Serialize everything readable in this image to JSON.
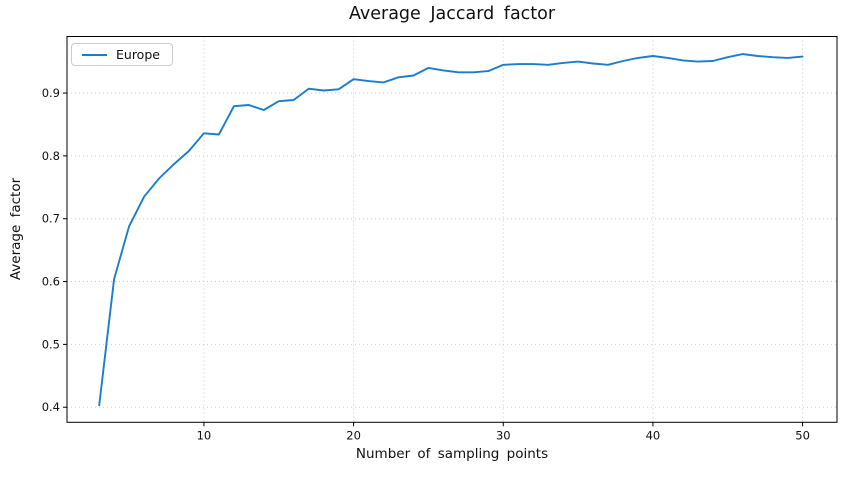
{
  "figure": {
    "background": "#ffffff"
  },
  "styles": {
    "line_color": "#1b7dcb",
    "grid_color": "#cccccc",
    "spine_color": "#000000",
    "text_color": "#111111",
    "legend_border_color": "#cccccc"
  },
  "legend": {
    "entries": [
      {
        "label": "Europe",
        "color": "#1b7dcb"
      }
    ],
    "position": "upper left"
  },
  "chart_data": {
    "type": "line",
    "title": "Average Jaccard factor",
    "xlabel": "Number of sampling points",
    "ylabel": "Average factor",
    "grid": true,
    "grid_style": "dotted",
    "legend_position": "upper left",
    "xlim": [
      0.85,
      52.3
    ],
    "ylim": [
      0.376,
      0.99
    ],
    "xticks": [
      10,
      20,
      30,
      40,
      50
    ],
    "yticks": [
      0.4,
      0.5,
      0.6,
      0.7,
      0.8,
      0.9
    ],
    "x": [
      3,
      4,
      5,
      6,
      7,
      8,
      9,
      10,
      11,
      12,
      13,
      14,
      15,
      16,
      17,
      18,
      19,
      20,
      21,
      22,
      23,
      24,
      25,
      26,
      27,
      28,
      29,
      30,
      31,
      32,
      33,
      34,
      35,
      36,
      37,
      38,
      39,
      40,
      41,
      42,
      43,
      44,
      45,
      46,
      47,
      48,
      49,
      50
    ],
    "series": [
      {
        "name": "Europe",
        "color": "#1b7dcb",
        "values": [
          0.403,
          0.604,
          0.688,
          0.735,
          0.764,
          0.787,
          0.808,
          0.836,
          0.834,
          0.879,
          0.881,
          0.873,
          0.887,
          0.889,
          0.907,
          0.904,
          0.906,
          0.922,
          0.919,
          0.917,
          0.925,
          0.928,
          0.94,
          0.936,
          0.933,
          0.933,
          0.935,
          0.945,
          0.946,
          0.946,
          0.945,
          0.948,
          0.95,
          0.947,
          0.945,
          0.951,
          0.956,
          0.959,
          0.956,
          0.952,
          0.95,
          0.951,
          0.957,
          0.962,
          0.959,
          0.957,
          0.956,
          0.958
        ]
      }
    ]
  }
}
